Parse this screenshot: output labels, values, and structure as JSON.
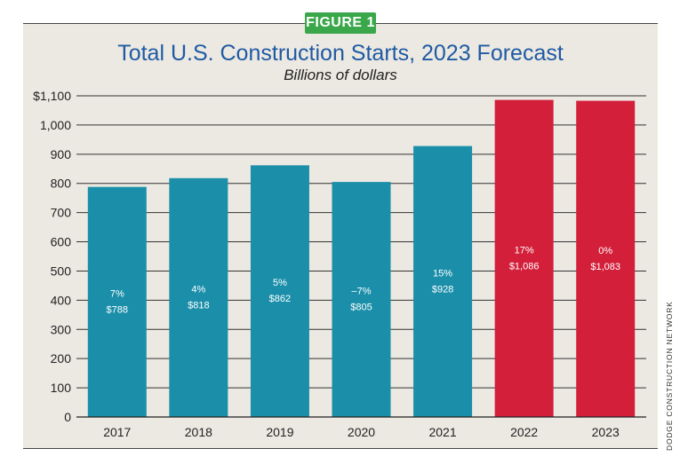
{
  "figure_label": "FIGURE 1",
  "credit": "DODGE CONSTRUCTION NETWORK",
  "chart_data": {
    "type": "bar",
    "title": "Total U.S. Construction Starts, 2023 Forecast",
    "subtitle": "Billions of dollars",
    "categories": [
      "2017",
      "2018",
      "2019",
      "2020",
      "2021",
      "2022",
      "2023"
    ],
    "values": [
      788,
      818,
      862,
      805,
      928,
      1086,
      1083
    ],
    "pct_labels": [
      "7%",
      "4%",
      "5%",
      "–7%",
      "15%",
      "17%",
      "0%"
    ],
    "value_labels": [
      "$788",
      "$818",
      "$862",
      "$805",
      "$928",
      "$1,086",
      "$1,083"
    ],
    "ylim": [
      0,
      1100
    ],
    "yticks": [
      0,
      100,
      200,
      300,
      400,
      500,
      600,
      700,
      800,
      900,
      1000,
      1100
    ],
    "ytick_labels": [
      "0",
      "100",
      "200",
      "300",
      "400",
      "500",
      "600",
      "700",
      "800",
      "900",
      "1,000",
      "$1,100"
    ],
    "colors": [
      "#1b8faa",
      "#1b8faa",
      "#1b8faa",
      "#1b8faa",
      "#1b8faa",
      "#d31f3a",
      "#d31f3a"
    ],
    "grid": true
  }
}
